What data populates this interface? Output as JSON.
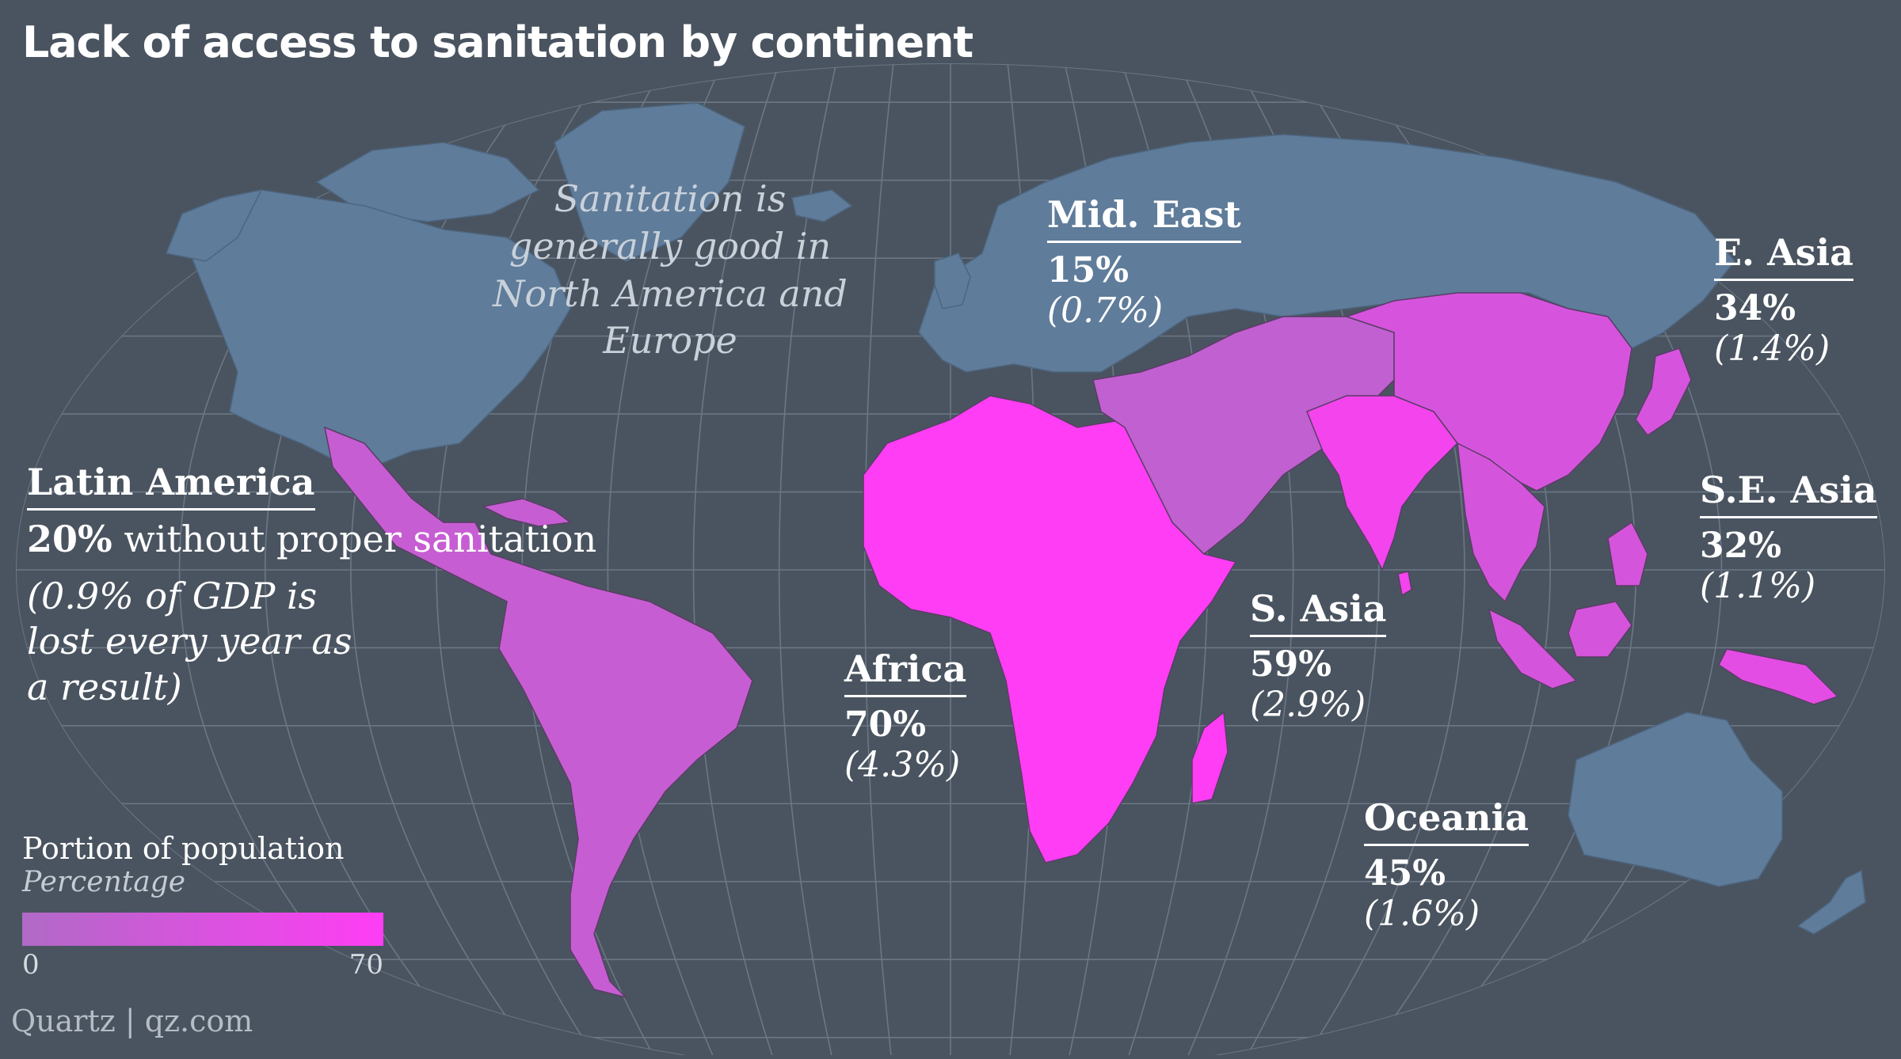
{
  "title": "Lack of access to sanitation by continent",
  "north_note": "Sanitation is generally good in North America and Europe",
  "colors": {
    "background": "#4a5460",
    "graticule": "#6b7784",
    "no_data_land": "#5f7c9a",
    "scale_low": "#b06ac6",
    "scale_high": "#ff3df5"
  },
  "scale": {
    "min": 0,
    "max": 70
  },
  "regions": {
    "latin_america": {
      "name": "Latin America",
      "value": 20,
      "pct_text": "20%",
      "pct_suffix": " without proper sanitation",
      "gdp_text": "(0.9% of GDP is lost every year as a result)"
    },
    "africa": {
      "name": "Africa",
      "value": 70,
      "pct_text": "70%",
      "gdp_text": "(4.3%)"
    },
    "mid_east": {
      "name": "Mid. East",
      "value": 15,
      "pct_text": "15%",
      "gdp_text": "(0.7%)"
    },
    "s_asia": {
      "name": "S. Asia",
      "value": 59,
      "pct_text": "59%",
      "gdp_text": "(2.9%)"
    },
    "e_asia": {
      "name": "E. Asia",
      "value": 34,
      "pct_text": "34%",
      "gdp_text": "(1.4%)"
    },
    "se_asia": {
      "name": "S.E. Asia",
      "value": 32,
      "pct_text": "32%",
      "gdp_text": "(1.1%)"
    },
    "oceania": {
      "name": "Oceania",
      "value": 45,
      "pct_text": "45%",
      "gdp_text": "(1.6%)"
    }
  },
  "legend": {
    "title": "Portion of population",
    "subtitle": "Percentage",
    "min_label": "0",
    "max_label": "70"
  },
  "source": "Quartz | qz.com"
}
